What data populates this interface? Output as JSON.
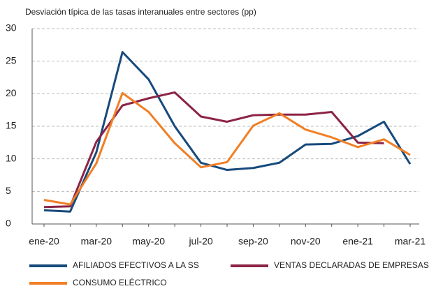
{
  "chart_data": {
    "type": "line",
    "title": "Desviación típica de las tasas interanuales entre sectores (pp)",
    "categories": [
      "ene-20",
      null,
      "mar-20",
      null,
      "may-20",
      null,
      "jul-20",
      null,
      "sep-20",
      null,
      "nov-20",
      null,
      "ene-21",
      null,
      "mar-21"
    ],
    "series": [
      {
        "name": "AFILIADOS EFECTIVOS A LA SS",
        "color": "#174a7c",
        "values": [
          2.1,
          1.9,
          11,
          26.4,
          22.2,
          15,
          9.4,
          8.3,
          8.6,
          9.4,
          12.2,
          12.3,
          13.5,
          15.7,
          9.2
        ]
      },
      {
        "name": "VENTAS DECLARADAS DE EMPRESAS",
        "color": "#8c2446",
        "values": [
          2.6,
          2.7,
          12.6,
          18.2,
          19.3,
          20.2,
          16.5,
          15.7,
          16.7,
          16.8,
          16.8,
          17.2,
          12.5,
          12.4,
          null
        ]
      },
      {
        "name": "CONSUMO ELÉCTRICO",
        "color": "#f07f26",
        "values": [
          3.7,
          3.0,
          9.3,
          20.1,
          17.2,
          12.4,
          8.7,
          9.5,
          15.1,
          17.0,
          14.5,
          13.3,
          11.8,
          13.0,
          10.6
        ]
      }
    ],
    "ylim": [
      0,
      30
    ],
    "yticks": [
      0,
      5,
      10,
      15,
      20,
      25,
      30
    ],
    "grid": true
  }
}
